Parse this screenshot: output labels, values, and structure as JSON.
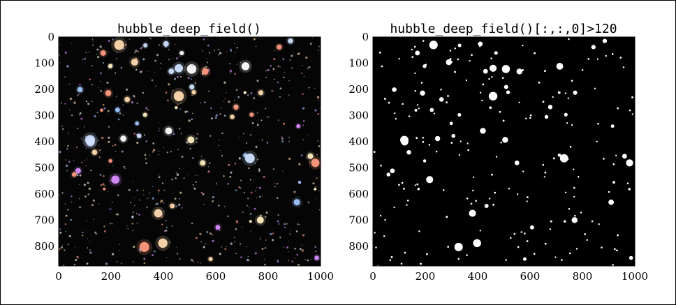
{
  "colors": {
    "background": "#ffffff",
    "border": "#000000",
    "sky": "#050505",
    "mask_fg": "#ffffff",
    "mask_bg": "#000000"
  },
  "chart_data": [
    {
      "type": "image",
      "title": "hubble_deep_field()",
      "xlim": [
        0,
        1000
      ],
      "ylim": [
        875,
        0
      ],
      "xticks": [
        0,
        200,
        400,
        600,
        800,
        1000
      ],
      "yticks": [
        0,
        100,
        200,
        300,
        400,
        500,
        600,
        700,
        800
      ],
      "xtick_labels": [
        "0",
        "200",
        "400",
        "600",
        "800",
        "1000"
      ],
      "ytick_labels": [
        "0",
        "100",
        "200",
        "300",
        "400",
        "500",
        "600",
        "700",
        "800"
      ],
      "content": "color photograph of a star field on black background"
    },
    {
      "type": "image",
      "title": "hubble_deep_field()[:,:,0]>120",
      "xlim": [
        0,
        1000
      ],
      "ylim": [
        875,
        0
      ],
      "xticks": [
        0,
        200,
        400,
        600,
        800,
        1000
      ],
      "yticks": [
        0,
        100,
        200,
        300,
        400,
        500,
        600,
        700,
        800
      ],
      "xtick_labels": [
        "0",
        "200",
        "400",
        "600",
        "800",
        "1000"
      ],
      "ytick_labels": [
        "0",
        "100",
        "200",
        "300",
        "400",
        "500",
        "600",
        "700",
        "800"
      ],
      "content": "binary mask: white blobs on black background"
    }
  ]
}
